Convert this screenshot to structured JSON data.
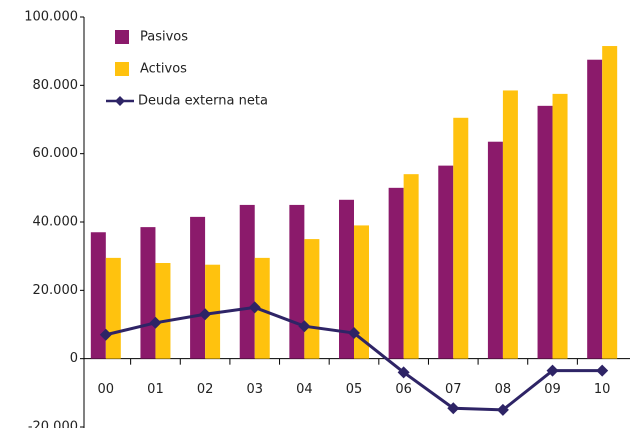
{
  "chart_data": {
    "type": "bar_line",
    "categories": [
      "00",
      "01",
      "02",
      "03",
      "04",
      "05",
      "06",
      "07",
      "08",
      "09",
      "10"
    ],
    "series": [
      {
        "name": "Pasivos",
        "color": "#8b1a6b",
        "type": "bar",
        "values": [
          37000,
          38500,
          41500,
          45000,
          45000,
          46500,
          50000,
          56500,
          63500,
          74000,
          87500
        ]
      },
      {
        "name": "Activos",
        "color": "#ffc20e",
        "type": "bar",
        "values": [
          29500,
          28000,
          27500,
          29500,
          35000,
          39000,
          54000,
          70500,
          78500,
          77500,
          91500
        ]
      },
      {
        "name": "Deuda externa neta",
        "color": "#2e2466",
        "type": "line",
        "values": [
          7000,
          10500,
          13000,
          15000,
          9500,
          7500,
          -4000,
          -14500,
          -15000,
          -3500,
          -3500
        ]
      }
    ],
    "ylim": [
      -20000,
      100000
    ],
    "yticks": [
      {
        "value": -20000,
        "label": "-20.000"
      },
      0,
      {
        "value": 20000,
        "label": "20.000"
      },
      {
        "value": 40000,
        "label": "40.000"
      },
      {
        "value": 60000,
        "label": "60.000"
      },
      {
        "value": 80000,
        "label": "80.000"
      },
      {
        "value": 100000,
        "label": "100.000"
      }
    ],
    "grid": false,
    "legend": "top-left"
  }
}
